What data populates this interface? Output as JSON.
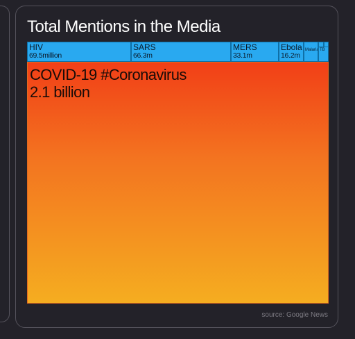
{
  "title": "Total Mentions in the Media",
  "source": "source: Google News",
  "chart_data": {
    "type": "treemap",
    "title": "Total Mentions in the Media",
    "unit": "mentions",
    "items": [
      {
        "name": "COVID-19 #Coronavirus",
        "label": "2.1 billion",
        "value": 2100000000
      },
      {
        "name": "HIV",
        "label": "69.5million",
        "value": 69500000
      },
      {
        "name": "SARS",
        "label": "66.3m",
        "value": 66300000
      },
      {
        "name": "MERS",
        "label": "33.1m",
        "value": 33100000
      },
      {
        "name": "Ebola",
        "label": "16.2m",
        "value": 16200000
      },
      {
        "name": "Malaria",
        "label": "",
        "value": 4500000
      },
      {
        "name": "TB",
        "label": "",
        "value": 2200000
      }
    ],
    "colors": {
      "major": "#f5ad20",
      "major_top": "#f23f17",
      "minor": "#29a9f0"
    }
  }
}
